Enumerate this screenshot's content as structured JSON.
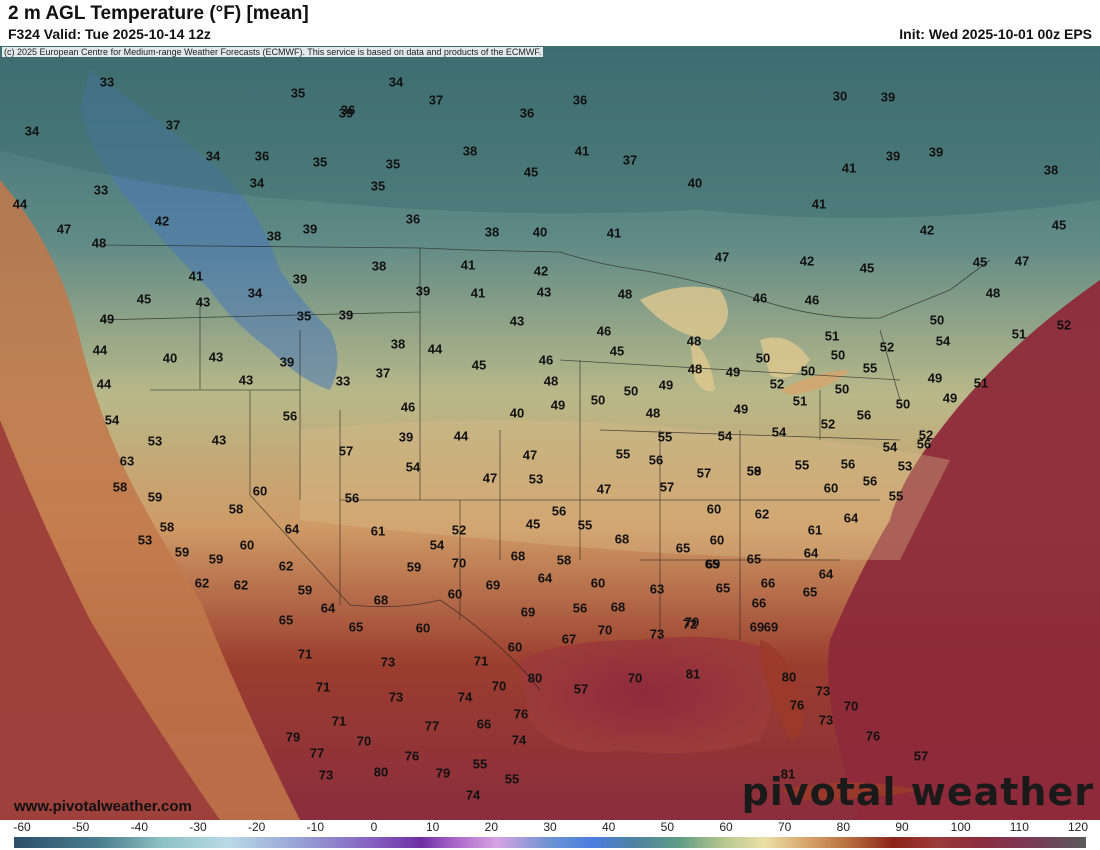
{
  "header": {
    "title": "2 m AGL Temperature (°F) [mean]",
    "valid": "F324 Valid: Tue 2025-10-14 12z",
    "init": "Init: Wed 2025-10-01 00z EPS"
  },
  "copyright": "(c) 2025 European Centre for Medium-range Weather Forecasts (ECMWF). This service is based on data and products of the ECMWF.",
  "footer": {
    "site": "www.pivotalweather.com",
    "brand": "pivotal weather"
  },
  "colorbar": {
    "ticks": [
      "-60",
      "-50",
      "-40",
      "-30",
      "-20",
      "-10",
      "0",
      "10",
      "20",
      "30",
      "40",
      "50",
      "60",
      "70",
      "80",
      "90",
      "100",
      "110",
      "120"
    ]
  },
  "labels": [
    {
      "t": "33"
    },
    {
      "t": "35"
    },
    {
      "t": "34"
    },
    {
      "t": "37"
    },
    {
      "t": "36"
    },
    {
      "t": "36"
    },
    {
      "t": "30"
    },
    {
      "t": "39"
    },
    {
      "t": "34"
    },
    {
      "t": "37"
    },
    {
      "t": "39"
    },
    {
      "t": "36"
    },
    {
      "t": "34"
    },
    {
      "t": "36"
    },
    {
      "t": "38"
    },
    {
      "t": "41"
    },
    {
      "t": "37"
    },
    {
      "t": "39"
    },
    {
      "t": "39"
    },
    {
      "t": "35"
    },
    {
      "t": "35"
    },
    {
      "t": "45"
    },
    {
      "t": "41"
    },
    {
      "t": "38"
    },
    {
      "t": "33"
    },
    {
      "t": "34"
    },
    {
      "t": "35"
    },
    {
      "t": "40"
    },
    {
      "t": "41"
    },
    {
      "t": "44"
    },
    {
      "t": "42"
    },
    {
      "t": "36"
    },
    {
      "t": "38"
    },
    {
      "t": "40"
    },
    {
      "t": "41"
    },
    {
      "t": "42"
    },
    {
      "t": "45"
    },
    {
      "t": "47"
    },
    {
      "t": "38"
    },
    {
      "t": "39"
    },
    {
      "t": "41"
    },
    {
      "t": "42"
    },
    {
      "t": "47"
    },
    {
      "t": "42"
    },
    {
      "t": "45"
    },
    {
      "t": "45"
    },
    {
      "t": "47"
    },
    {
      "t": "48"
    },
    {
      "t": "41"
    },
    {
      "t": "38"
    },
    {
      "t": "39"
    },
    {
      "t": "41"
    },
    {
      "t": "43"
    },
    {
      "t": "48"
    },
    {
      "t": "46"
    },
    {
      "t": "46"
    },
    {
      "t": "45"
    },
    {
      "t": "43"
    },
    {
      "t": "34"
    },
    {
      "t": "39"
    },
    {
      "t": "48"
    },
    {
      "t": "50"
    },
    {
      "t": "51"
    },
    {
      "t": "52"
    },
    {
      "t": "49"
    },
    {
      "t": "35"
    },
    {
      "t": "39"
    },
    {
      "t": "43"
    },
    {
      "t": "46"
    },
    {
      "t": "48"
    },
    {
      "t": "51"
    },
    {
      "t": "54"
    },
    {
      "t": "52"
    },
    {
      "t": "44"
    },
    {
      "t": "40"
    },
    {
      "t": "43"
    },
    {
      "t": "39"
    },
    {
      "t": "38"
    },
    {
      "t": "44"
    },
    {
      "t": "45"
    },
    {
      "t": "46"
    },
    {
      "t": "45"
    },
    {
      "t": "48"
    },
    {
      "t": "49"
    },
    {
      "t": "50"
    },
    {
      "t": "50"
    },
    {
      "t": "55"
    },
    {
      "t": "44"
    },
    {
      "t": "43"
    },
    {
      "t": "33"
    },
    {
      "t": "37"
    },
    {
      "t": "48"
    },
    {
      "t": "49"
    },
    {
      "t": "50"
    },
    {
      "t": "52"
    },
    {
      "t": "50"
    },
    {
      "t": "49"
    },
    {
      "t": "51"
    },
    {
      "t": "54"
    },
    {
      "t": "56"
    },
    {
      "t": "46"
    },
    {
      "t": "40"
    },
    {
      "t": "49"
    },
    {
      "t": "50"
    },
    {
      "t": "50"
    },
    {
      "t": "49"
    },
    {
      "t": "51"
    },
    {
      "t": "56"
    },
    {
      "t": "50"
    },
    {
      "t": "49"
    },
    {
      "t": "53"
    },
    {
      "t": "43"
    },
    {
      "t": "39"
    },
    {
      "t": "44"
    },
    {
      "t": "48"
    },
    {
      "t": "52"
    },
    {
      "t": "52"
    },
    {
      "t": "56"
    },
    {
      "t": "63"
    },
    {
      "t": "57"
    },
    {
      "t": "47"
    },
    {
      "t": "55"
    },
    {
      "t": "55"
    },
    {
      "t": "54"
    },
    {
      "t": "54"
    },
    {
      "t": "54"
    },
    {
      "t": "58"
    },
    {
      "t": "54"
    },
    {
      "t": "47"
    },
    {
      "t": "53"
    },
    {
      "t": "56"
    },
    {
      "t": "57"
    },
    {
      "t": "58"
    },
    {
      "t": "55"
    },
    {
      "t": "56"
    },
    {
      "t": "53"
    },
    {
      "t": "59"
    },
    {
      "t": "60"
    },
    {
      "t": "56"
    },
    {
      "t": "47"
    },
    {
      "t": "57"
    },
    {
      "t": "59"
    },
    {
      "t": "56"
    },
    {
      "t": "58"
    },
    {
      "t": "58"
    },
    {
      "t": "61"
    },
    {
      "t": "52"
    },
    {
      "t": "56"
    },
    {
      "t": "60"
    },
    {
      "t": "60"
    },
    {
      "t": "55"
    },
    {
      "t": "53"
    },
    {
      "t": "64"
    },
    {
      "t": "54"
    },
    {
      "t": "45"
    },
    {
      "t": "55"
    },
    {
      "t": "62"
    },
    {
      "t": "61"
    },
    {
      "t": "59"
    },
    {
      "t": "59"
    },
    {
      "t": "60"
    },
    {
      "t": "70"
    },
    {
      "t": "68"
    },
    {
      "t": "60"
    },
    {
      "t": "64"
    },
    {
      "t": "62"
    },
    {
      "t": "59"
    },
    {
      "t": "68"
    },
    {
      "t": "58"
    },
    {
      "t": "65"
    },
    {
      "t": "65"
    },
    {
      "t": "64"
    },
    {
      "t": "62"
    },
    {
      "t": "62"
    },
    {
      "t": "59"
    },
    {
      "t": "69"
    },
    {
      "t": "64"
    },
    {
      "t": "65"
    },
    {
      "t": "69"
    },
    {
      "t": "64"
    },
    {
      "t": "68"
    },
    {
      "t": "60"
    },
    {
      "t": "60"
    },
    {
      "t": "60"
    },
    {
      "t": "63"
    },
    {
      "t": "65"
    },
    {
      "t": "66"
    },
    {
      "t": "66"
    },
    {
      "t": "64"
    },
    {
      "t": "65"
    },
    {
      "t": "65"
    },
    {
      "t": "69"
    },
    {
      "t": "56"
    },
    {
      "t": "68"
    },
    {
      "t": "70"
    },
    {
      "t": "69"
    },
    {
      "t": "65"
    },
    {
      "t": "69"
    },
    {
      "t": "67"
    },
    {
      "t": "70"
    },
    {
      "t": "73"
    },
    {
      "t": "71"
    },
    {
      "t": "73"
    },
    {
      "t": "71"
    },
    {
      "t": "60"
    },
    {
      "t": "72"
    },
    {
      "t": "71"
    },
    {
      "t": "70"
    },
    {
      "t": "73"
    },
    {
      "t": "74"
    },
    {
      "t": "57"
    },
    {
      "t": "70"
    },
    {
      "t": "81"
    },
    {
      "t": "80"
    },
    {
      "t": "80"
    },
    {
      "t": "73"
    },
    {
      "t": "71"
    },
    {
      "t": "77"
    },
    {
      "t": "76"
    },
    {
      "t": "66"
    },
    {
      "t": "74"
    },
    {
      "t": "70"
    },
    {
      "t": "73"
    },
    {
      "t": "79"
    },
    {
      "t": "77"
    },
    {
      "t": "70"
    },
    {
      "t": "76"
    },
    {
      "t": "76"
    },
    {
      "t": "73"
    },
    {
      "t": "80"
    },
    {
      "t": "76"
    },
    {
      "t": "79"
    },
    {
      "t": "55"
    },
    {
      "t": "55"
    },
    {
      "t": "57"
    },
    {
      "t": "74"
    },
    {
      "t": "81"
    },
    {
      "t": "56"
    },
    {
      "t": "81"
    }
  ]
}
